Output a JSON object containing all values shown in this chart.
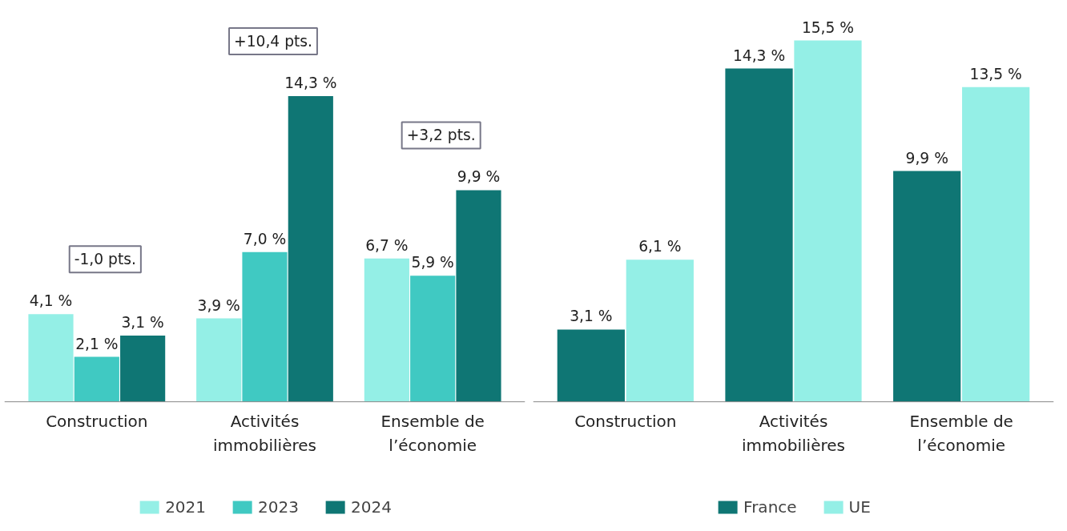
{
  "chart_data": [
    {
      "type": "bar",
      "categories": [
        "Construction",
        "Activités\nimmobilières",
        "Ensemble de\nl’économie"
      ],
      "series": [
        {
          "name": "2021",
          "color": "#94efe6",
          "values": [
            4.1,
            3.9,
            6.7
          ],
          "value_labels": [
            "4,1 %",
            "3,9 %",
            "6,7 %"
          ]
        },
        {
          "name": "2023",
          "color": "#40c9c2",
          "values": [
            2.1,
            7.0,
            5.9
          ],
          "value_labels": [
            "2,1 %",
            "7,0 %",
            "5,9 %"
          ]
        },
        {
          "name": "2024",
          "color": "#0f7674",
          "values": [
            3.1,
            14.3,
            9.9
          ],
          "value_labels": [
            "3,1 %",
            "14,3 %",
            "9,9 %"
          ]
        }
      ],
      "annotations": [
        "-1,0 pts.",
        "+10,4 pts.",
        "+3,2 pts."
      ],
      "legend": "bottom",
      "grid": false
    },
    {
      "type": "bar",
      "categories": [
        "Construction",
        "Activités\nimmobilières",
        "Ensemble de\nl’économie"
      ],
      "series": [
        {
          "name": "France",
          "color": "#0f7674",
          "values": [
            3.1,
            14.3,
            9.9
          ],
          "value_labels": [
            "3,1 %",
            "14,3 %",
            "9,9 %"
          ]
        },
        {
          "name": "UE",
          "color": "#94efe6",
          "values": [
            6.1,
            15.5,
            13.5
          ],
          "value_labels": [
            "6,1 %",
            "15,5 %",
            "13,5 %"
          ]
        }
      ],
      "legend": "bottom",
      "grid": false
    }
  ]
}
